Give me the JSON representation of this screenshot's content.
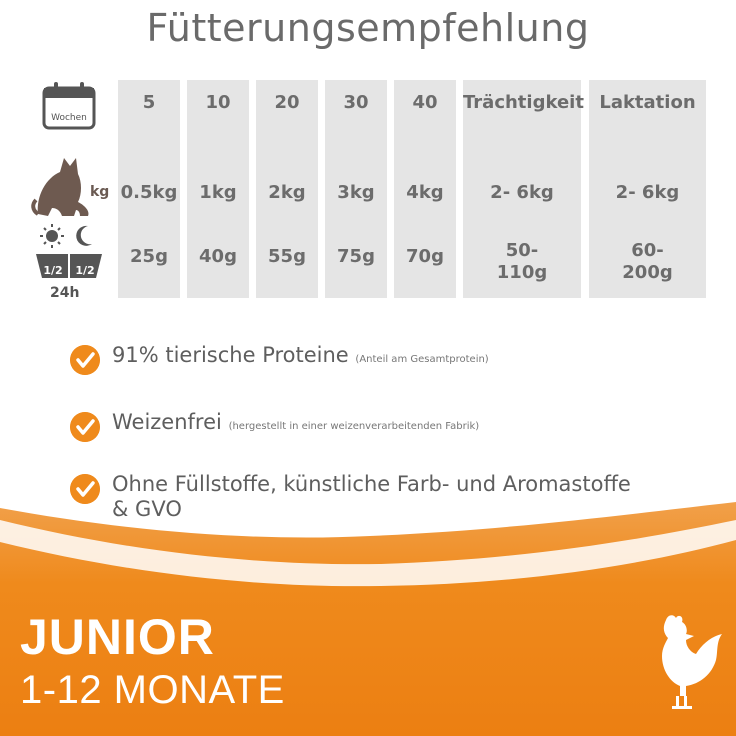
{
  "title": "Fütterungsempfehlung",
  "icons": {
    "calendar_label": "Wochen",
    "weight_unit": "kg",
    "portion_split_left": "1/2",
    "portion_split_right": "1/2",
    "portion_period": "24h"
  },
  "feeding_table": {
    "columns": [
      {
        "header": "5",
        "weight": "0.5kg",
        "amount": "25g"
      },
      {
        "header": "10",
        "weight": "1kg",
        "amount": "40g"
      },
      {
        "header": "20",
        "weight": "2kg",
        "amount": "55g"
      },
      {
        "header": "30",
        "weight": "3kg",
        "amount": "75g"
      },
      {
        "header": "40",
        "weight": "4kg",
        "amount": "70g"
      },
      {
        "header": "Trächtigkeit",
        "weight": "2- 6kg",
        "amount_line1": "50-",
        "amount_line2": "110g"
      },
      {
        "header": "Laktation",
        "weight": "2- 6kg",
        "amount_line1": "60-",
        "amount_line2": "200g"
      }
    ]
  },
  "benefits": [
    {
      "text": "91% tierische Proteine",
      "note": "(Anteil am Gesamtprotein)"
    },
    {
      "text": "Weizenfrei",
      "note": "(hergestellt in einer weizenverarbeitenden Fabrik)"
    },
    {
      "text_line1": "Ohne Füllstoffe, künstliche Farb- und Aromastoffe",
      "text_line2": "& GVO"
    }
  ],
  "banner": {
    "heading": "JUNIOR",
    "subheading": "1-12 MONATE",
    "color": "#ef8a1c"
  }
}
